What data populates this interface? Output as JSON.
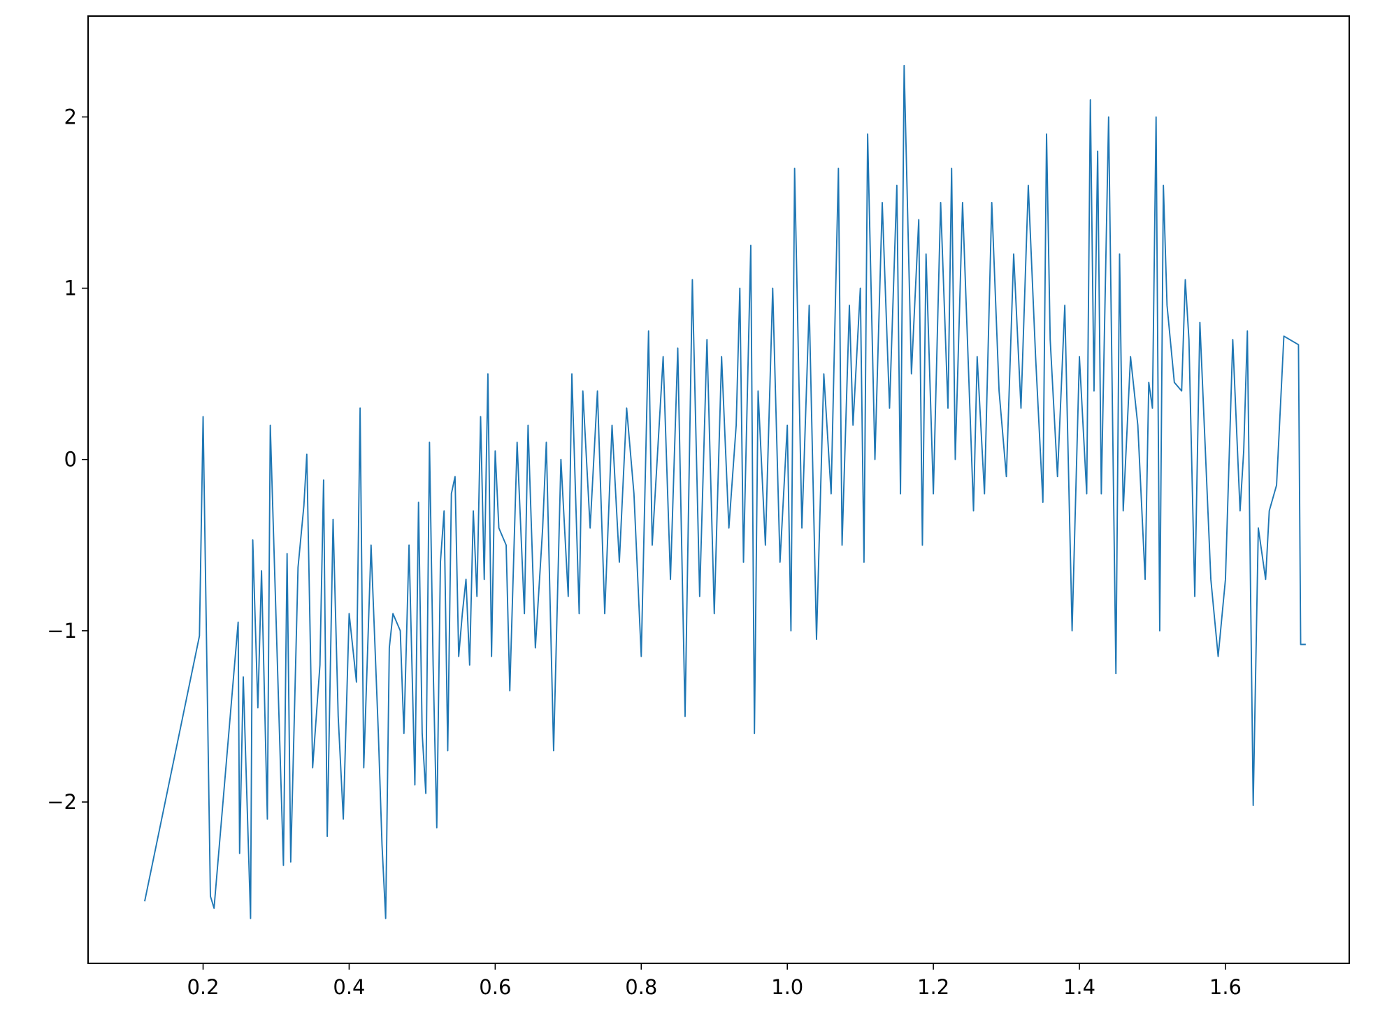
{
  "chart_data": {
    "type": "line",
    "color": "#1f77b4",
    "x": [
      0.12,
      0.195,
      0.2,
      0.21,
      0.215,
      0.248,
      0.25,
      0.255,
      0.265,
      0.268,
      0.275,
      0.28,
      0.288,
      0.292,
      0.31,
      0.315,
      0.32,
      0.33,
      0.338,
      0.342,
      0.35,
      0.36,
      0.365,
      0.37,
      0.378,
      0.385,
      0.392,
      0.4,
      0.41,
      0.415,
      0.42,
      0.43,
      0.44,
      0.445,
      0.45,
      0.455,
      0.46,
      0.47,
      0.475,
      0.482,
      0.49,
      0.495,
      0.5,
      0.505,
      0.51,
      0.515,
      0.52,
      0.525,
      0.53,
      0.535,
      0.54,
      0.545,
      0.55,
      0.555,
      0.56,
      0.565,
      0.57,
      0.575,
      0.58,
      0.585,
      0.59,
      0.595,
      0.6,
      0.605,
      0.615,
      0.62,
      0.63,
      0.64,
      0.645,
      0.655,
      0.665,
      0.67,
      0.68,
      0.69,
      0.7,
      0.705,
      0.715,
      0.72,
      0.73,
      0.74,
      0.75,
      0.76,
      0.77,
      0.78,
      0.79,
      0.8,
      0.81,
      0.815,
      0.83,
      0.84,
      0.85,
      0.86,
      0.87,
      0.88,
      0.89,
      0.9,
      0.91,
      0.92,
      0.93,
      0.935,
      0.94,
      0.95,
      0.955,
      0.96,
      0.97,
      0.98,
      0.99,
      1.0,
      1.005,
      1.01,
      1.02,
      1.03,
      1.04,
      1.05,
      1.06,
      1.07,
      1.075,
      1.085,
      1.09,
      1.1,
      1.105,
      1.11,
      1.12,
      1.13,
      1.14,
      1.15,
      1.155,
      1.16,
      1.17,
      1.18,
      1.185,
      1.19,
      1.2,
      1.21,
      1.22,
      1.225,
      1.23,
      1.24,
      1.25,
      1.255,
      1.26,
      1.27,
      1.28,
      1.29,
      1.3,
      1.31,
      1.32,
      1.33,
      1.34,
      1.35,
      1.355,
      1.36,
      1.37,
      1.38,
      1.39,
      1.4,
      1.41,
      1.415,
      1.42,
      1.425,
      1.43,
      1.44,
      1.45,
      1.455,
      1.46,
      1.47,
      1.48,
      1.49,
      1.495,
      1.5,
      1.505,
      1.51,
      1.515,
      1.52,
      1.53,
      1.54,
      1.545,
      1.55,
      1.558,
      1.565,
      1.58,
      1.59,
      1.6,
      1.61,
      1.62,
      1.625,
      1.63,
      1.638,
      1.645,
      1.655,
      1.66,
      1.67,
      1.68,
      1.7,
      1.703,
      1.71
    ],
    "values": [
      -2.58,
      -1.03,
      0.25,
      -2.55,
      -2.62,
      -0.95,
      -2.3,
      -1.27,
      -2.68,
      -0.47,
      -1.45,
      -0.65,
      -2.1,
      0.2,
      -2.37,
      -0.55,
      -2.35,
      -0.63,
      -0.27,
      0.03,
      -1.8,
      -1.2,
      -0.12,
      -2.2,
      -0.35,
      -1.5,
      -2.1,
      -0.9,
      -1.3,
      0.3,
      -1.8,
      -0.5,
      -1.6,
      -2.25,
      -2.68,
      -1.1,
      -0.9,
      -1.0,
      -1.6,
      -0.5,
      -1.9,
      -0.25,
      -1.6,
      -1.95,
      0.1,
      -1.2,
      -2.15,
      -0.6,
      -0.3,
      -1.7,
      -0.2,
      -0.1,
      -1.15,
      -0.9,
      -0.7,
      -1.2,
      -0.3,
      -0.8,
      0.25,
      -0.7,
      0.5,
      -1.15,
      0.05,
      -0.4,
      -0.5,
      -1.35,
      0.1,
      -0.9,
      0.2,
      -1.1,
      -0.4,
      0.1,
      -1.7,
      0.0,
      -0.8,
      0.5,
      -0.9,
      0.4,
      -0.4,
      0.4,
      -0.9,
      0.2,
      -0.6,
      0.3,
      -0.2,
      -1.15,
      0.75,
      -0.5,
      0.6,
      -0.7,
      0.65,
      -1.5,
      1.05,
      -0.8,
      0.7,
      -0.9,
      0.6,
      -0.4,
      0.2,
      1.0,
      -0.6,
      1.25,
      -1.6,
      0.4,
      -0.5,
      1.0,
      -0.6,
      0.2,
      -1.0,
      1.7,
      -0.4,
      0.9,
      -1.05,
      0.5,
      -0.2,
      1.7,
      -0.5,
      0.9,
      0.2,
      1.0,
      -0.6,
      1.9,
      0.0,
      1.5,
      0.3,
      1.6,
      -0.2,
      2.3,
      0.5,
      1.4,
      -0.5,
      1.2,
      -0.2,
      1.5,
      0.3,
      1.7,
      0.0,
      1.5,
      0.3,
      -0.3,
      0.6,
      -0.2,
      1.5,
      0.4,
      -0.1,
      1.2,
      0.3,
      1.6,
      0.6,
      -0.25,
      1.9,
      0.7,
      -0.1,
      0.9,
      -1.0,
      0.6,
      -0.2,
      2.1,
      0.4,
      1.8,
      -0.2,
      2.0,
      -1.25,
      1.2,
      -0.3,
      0.6,
      0.2,
      -0.7,
      0.45,
      0.3,
      2.0,
      -1.0,
      1.6,
      0.9,
      0.45,
      0.4,
      1.05,
      0.7,
      -0.8,
      0.8,
      -0.7,
      -1.15,
      -0.7,
      0.7,
      -0.3,
      0.05,
      0.75,
      -2.02,
      -0.4,
      -0.7,
      -0.3,
      -0.15,
      0.72,
      0.67,
      -1.08,
      -1.08
    ],
    "xlim": [
      0.0425,
      1.7695
    ],
    "ylim": [
      -2.942,
      2.589
    ],
    "xticks": [
      0.2,
      0.4,
      0.6,
      0.8,
      {
        "value": 1.0,
        "label": "1.0"
      },
      1.2,
      1.4,
      1.6
    ],
    "yticks": [
      {
        "value": -2,
        "label": "−2"
      },
      {
        "value": -1,
        "label": "−1"
      },
      0,
      1,
      2
    ]
  }
}
